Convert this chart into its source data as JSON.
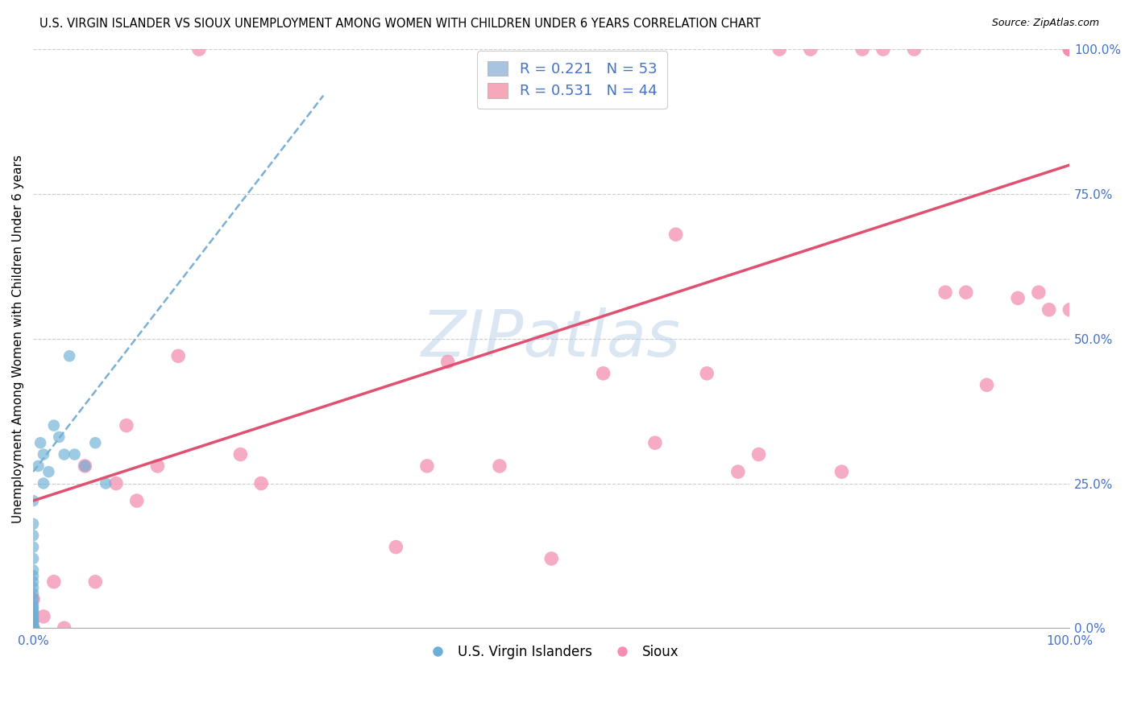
{
  "title": "U.S. VIRGIN ISLANDER VS SIOUX UNEMPLOYMENT AMONG WOMEN WITH CHILDREN UNDER 6 YEARS CORRELATION CHART",
  "source": "Source: ZipAtlas.com",
  "ylabel": "Unemployment Among Women with Children Under 6 years",
  "ytick_labels": [
    "0.0%",
    "25.0%",
    "50.0%",
    "75.0%",
    "100.0%"
  ],
  "ytick_values": [
    0.0,
    0.25,
    0.5,
    0.75,
    1.0
  ],
  "xlim": [
    0.0,
    1.0
  ],
  "ylim": [
    0.0,
    1.0
  ],
  "legend_label1": "R = 0.221   N = 53",
  "legend_label2": "R = 0.531   N = 44",
  "legend_entry1_color": "#a8c4e0",
  "legend_entry2_color": "#f4a8b8",
  "watermark": "ZIPatlas",
  "blue_scatter_color": "#6baed6",
  "pink_scatter_color": "#f48fb1",
  "blue_line_color": "#7ab0d4",
  "pink_line_color": "#e05070",
  "grid_color": "#cccccc",
  "blue_points_x": [
    0.0,
    0.0,
    0.0,
    0.0,
    0.0,
    0.0,
    0.0,
    0.0,
    0.0,
    0.0,
    0.0,
    0.0,
    0.0,
    0.0,
    0.0,
    0.0,
    0.0,
    0.0,
    0.0,
    0.0,
    0.0,
    0.0,
    0.0,
    0.0,
    0.0,
    0.0,
    0.0,
    0.0,
    0.0,
    0.0,
    0.0,
    0.0,
    0.0,
    0.0,
    0.0,
    0.0,
    0.0,
    0.0,
    0.0,
    0.0,
    0.005,
    0.007,
    0.01,
    0.01,
    0.015,
    0.02,
    0.025,
    0.03,
    0.035,
    0.04,
    0.05,
    0.06,
    0.07
  ],
  "blue_points_y": [
    0.0,
    0.0,
    0.0,
    0.0,
    0.0,
    0.0,
    0.0,
    0.0,
    0.0,
    0.0,
    0.0,
    0.0,
    0.0,
    0.0,
    0.0,
    0.0,
    0.0,
    0.0,
    0.0,
    0.0,
    0.005,
    0.01,
    0.01,
    0.015,
    0.02,
    0.025,
    0.03,
    0.035,
    0.04,
    0.05,
    0.06,
    0.07,
    0.08,
    0.09,
    0.1,
    0.12,
    0.14,
    0.16,
    0.18,
    0.22,
    0.28,
    0.32,
    0.3,
    0.25,
    0.27,
    0.35,
    0.33,
    0.3,
    0.47,
    0.3,
    0.28,
    0.32,
    0.25
  ],
  "pink_points_x": [
    0.0,
    0.0,
    0.01,
    0.02,
    0.03,
    0.05,
    0.06,
    0.08,
    0.09,
    0.1,
    0.12,
    0.14,
    0.16,
    0.2,
    0.22,
    0.35,
    0.38,
    0.4,
    0.45,
    0.5,
    0.55,
    0.6,
    0.62,
    0.65,
    0.68,
    0.7,
    0.72,
    0.75,
    0.78,
    0.8,
    0.82,
    0.85,
    0.88,
    0.9,
    0.92,
    0.95,
    0.97,
    0.98,
    1.0,
    1.0,
    1.0,
    1.0,
    1.0,
    1.0
  ],
  "pink_points_y": [
    0.0,
    0.05,
    0.02,
    0.08,
    0.0,
    0.28,
    0.08,
    0.25,
    0.35,
    0.22,
    0.28,
    0.47,
    1.0,
    0.3,
    0.25,
    0.14,
    0.28,
    0.46,
    0.28,
    0.12,
    0.44,
    0.32,
    0.68,
    0.44,
    0.27,
    0.3,
    1.0,
    1.0,
    0.27,
    1.0,
    1.0,
    1.0,
    0.58,
    0.58,
    0.42,
    0.57,
    0.58,
    0.55,
    0.55,
    1.0,
    1.0,
    1.0,
    1.0,
    1.0
  ],
  "blue_line_x0": 0.0,
  "blue_line_x1": 0.28,
  "blue_line_y0": 0.27,
  "blue_line_y1": 0.92,
  "pink_line_x0": 0.0,
  "pink_line_x1": 1.0,
  "pink_line_y0": 0.22,
  "pink_line_y1": 0.8,
  "legend_fontsize": 13,
  "title_fontsize": 10.5,
  "axis_label_fontsize": 11,
  "tick_fontsize": 11
}
